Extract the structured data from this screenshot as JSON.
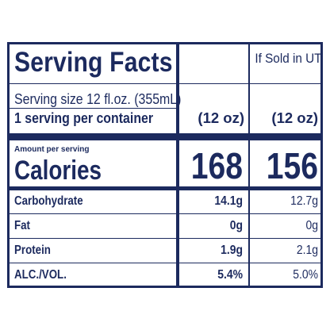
{
  "title": "Serving Facts",
  "column_headers": {
    "col1": "",
    "col2": "If Sold in UT"
  },
  "serving_size": "Serving size 12 fl.oz. (355mL)",
  "servings_per_container": "1 serving per container",
  "container_size": {
    "col1": "(12 oz)",
    "col2": "(12 oz)"
  },
  "amount_per_serving": "Amount per serving",
  "calories": {
    "label": "Calories",
    "col1": "168",
    "col2": "156"
  },
  "rows": [
    {
      "label": "Carbohydrate",
      "col1": "14.1g",
      "col2": "12.7g"
    },
    {
      "label": "Fat",
      "col1": "0g",
      "col2": "0g"
    },
    {
      "label": "Protein",
      "col1": "1.9g",
      "col2": "2.1g"
    },
    {
      "label": "ALC./VOL.",
      "col1": "5.4%",
      "col2": "5.0%"
    }
  ],
  "colors": {
    "ink": "#1c2a5e",
    "background": "#ffffff"
  }
}
